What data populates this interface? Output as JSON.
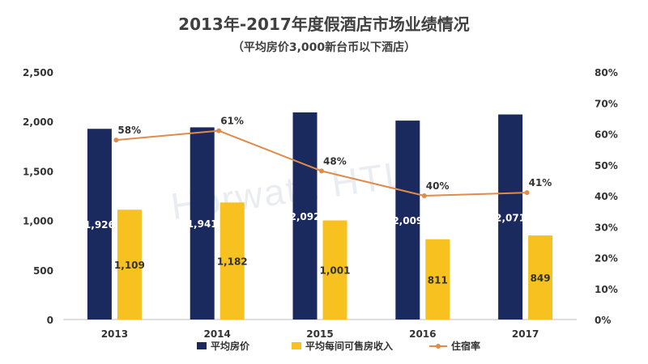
{
  "title": "2013年-2017年度假酒店市场业绩情况",
  "subtitle": "（平均房价3,000新台币以下酒店）",
  "watermark": "Horwath HTL",
  "colors": {
    "navy": "#1b2a5e",
    "yellow": "#f7c11f",
    "orange": "#e08b4a",
    "axis_text": "#333333",
    "grid": "#d9d9d9"
  },
  "chart_data": {
    "type": "bar",
    "categories": [
      "2013",
      "2014",
      "2015",
      "2016",
      "2017"
    ],
    "series": [
      {
        "name": "平均房价",
        "type": "bar",
        "axis": "left",
        "values": [
          1926,
          1941,
          2092,
          2009,
          2071
        ],
        "labels": [
          "1,926",
          "1,941",
          "2,092",
          "2,009",
          "2,071"
        ]
      },
      {
        "name": "平均每间可售房收入",
        "type": "bar",
        "axis": "left",
        "values": [
          1109,
          1182,
          1001,
          811,
          849
        ],
        "labels": [
          "1,109",
          "1,182",
          "1,001",
          "811",
          "849"
        ]
      },
      {
        "name": "住宿率",
        "type": "line",
        "axis": "right",
        "values": [
          58,
          61,
          48,
          40,
          41
        ],
        "labels": [
          "58%",
          "61%",
          "48%",
          "40%",
          "41%"
        ]
      }
    ],
    "y_left": {
      "ylim": [
        0,
        2500
      ],
      "ticks": [
        0,
        500,
        1000,
        1500,
        2000,
        2500
      ],
      "tick_labels": [
        "0",
        "500",
        "1,000",
        "1,500",
        "2,000",
        "2,500"
      ]
    },
    "y_right": {
      "ylim": [
        0,
        80
      ],
      "ticks": [
        0,
        10,
        20,
        30,
        40,
        50,
        60,
        70,
        80
      ],
      "tick_labels": [
        "0%",
        "10%",
        "20%",
        "30%",
        "40%",
        "50%",
        "60%",
        "70%",
        "80%"
      ]
    },
    "grid": false,
    "legend_position": "bottom"
  }
}
